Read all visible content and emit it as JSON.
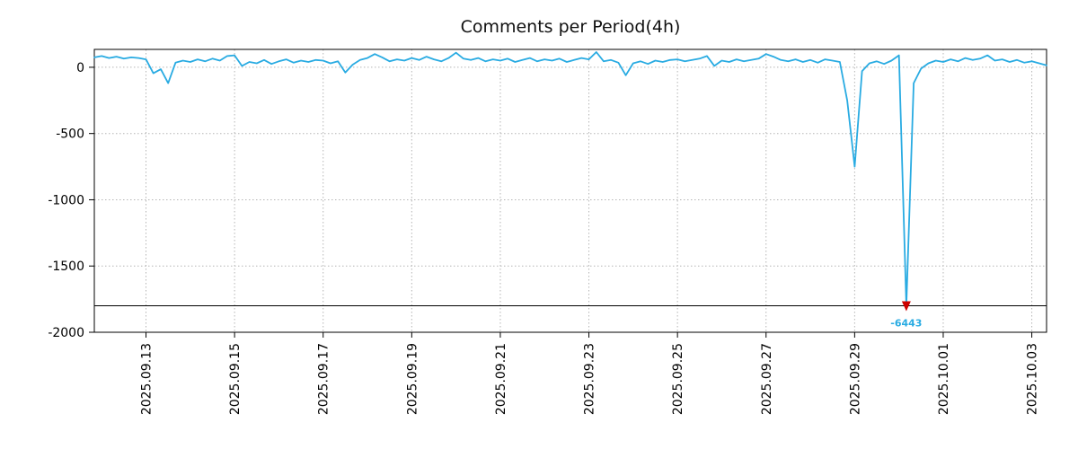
{
  "title": "Comments per Period(4h)",
  "colors": {
    "line": "#29abe2",
    "marker": "#cc0000",
    "grid": "#b5b5b5",
    "axis": "#000000",
    "background": "#ffffff"
  },
  "chart_data": {
    "type": "line",
    "title": "Comments per Period(4h)",
    "grid": true,
    "legend": "none",
    "x_start_day": -1.1667,
    "x_step_days": 0.1666667,
    "x_end_day": 20.3333,
    "x_tick_days": [
      0,
      2,
      4,
      6,
      8,
      10,
      12,
      14,
      16,
      18,
      20
    ],
    "x_tick_labels": [
      "2025.09.13",
      "2025.09.15",
      "2025.09.17",
      "2025.09.19",
      "2025.09.21",
      "2025.09.23",
      "2025.09.25",
      "2025.09.27",
      "2025.09.29",
      "2025.10.01",
      "2025.10.03"
    ],
    "y_ticks": [
      0,
      -500,
      -1000,
      -1500,
      -2000
    ],
    "ylim": [
      -2000,
      135
    ],
    "clip_line_value": -1800,
    "series": [
      {
        "name": "comments-per-4h",
        "color": "#29abe2",
        "values": [
          75,
          85,
          70,
          80,
          65,
          75,
          70,
          60,
          -45,
          -15,
          -120,
          35,
          50,
          40,
          60,
          45,
          65,
          50,
          85,
          90,
          10,
          40,
          30,
          55,
          25,
          45,
          60,
          35,
          50,
          40,
          55,
          50,
          30,
          45,
          -40,
          20,
          55,
          70,
          100,
          75,
          45,
          60,
          50,
          70,
          55,
          80,
          60,
          45,
          70,
          110,
          65,
          55,
          70,
          45,
          60,
          50,
          65,
          40,
          55,
          70,
          45,
          60,
          50,
          65,
          40,
          55,
          70,
          60,
          115,
          45,
          55,
          35,
          -60,
          30,
          45,
          25,
          50,
          40,
          55,
          60,
          45,
          55,
          65,
          85,
          10,
          50,
          40,
          60,
          45,
          55,
          65,
          100,
          80,
          55,
          45,
          60,
          40,
          55,
          35,
          60,
          50,
          40,
          -250,
          -750,
          -30,
          30,
          45,
          25,
          50,
          90,
          -6443,
          -120,
          -10,
          30,
          50,
          40,
          60,
          45,
          70,
          55,
          65,
          90,
          50,
          60,
          40,
          55,
          35,
          45,
          30,
          15
        ]
      }
    ],
    "min_annotation": {
      "label": "-6443",
      "value": -6443,
      "day": 17.1667,
      "marker": "triangle-down",
      "marker_color": "#cc0000",
      "label_color": "#29abe2"
    }
  }
}
